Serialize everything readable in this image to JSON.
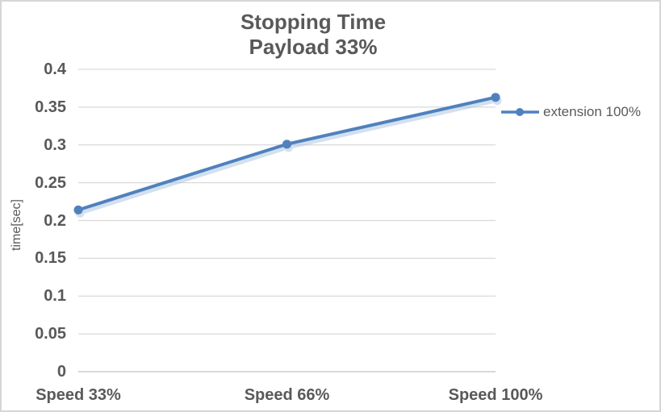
{
  "chart_data": {
    "type": "line",
    "title_lines": [
      "Stopping Time",
      "Payload 33%"
    ],
    "ylabel": "time[sec]",
    "xlabel": "",
    "categories": [
      "Speed 33%",
      "Speed 66%",
      "Speed 100%"
    ],
    "series": [
      {
        "name": "extension 100%",
        "values": [
          0.214,
          0.301,
          0.363
        ]
      }
    ],
    "ylim": [
      0,
      0.4
    ],
    "ytick_step": 0.05,
    "ytick_labels": [
      "0",
      "0.05",
      "0.1",
      "0.15",
      "0.2",
      "0.25",
      "0.3",
      "0.35",
      "0.4"
    ],
    "grid": true,
    "legend_position": "right",
    "colors": {
      "series": "#4F81BD",
      "series_shadow": "#A8C2E0",
      "grid": "#D9D9D9",
      "text": "#595959",
      "chart_border": "#D6D6D6"
    }
  }
}
